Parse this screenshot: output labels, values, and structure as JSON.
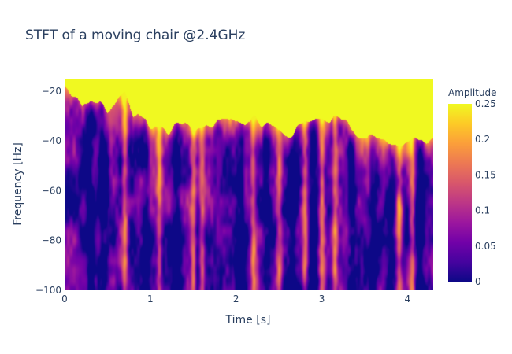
{
  "chart_data": {
    "type": "heatmap",
    "title": "STFT of a moving chair @2.4GHz",
    "xlabel": "Time [s]",
    "ylabel": "Frequency [Hz]",
    "xlim": [
      0,
      4.3
    ],
    "ylim": [
      -100,
      -15
    ],
    "x_ticks": [
      0,
      1,
      2,
      3,
      4
    ],
    "x_tick_labels": [
      "0",
      "1",
      "2",
      "3",
      "4"
    ],
    "y_ticks": [
      -20,
      -40,
      -60,
      -80,
      -100
    ],
    "y_tick_labels": [
      "−20",
      "−40",
      "−60",
      "−80",
      "−100"
    ],
    "colorbar": {
      "title": "Amplitude",
      "range": [
        0,
        0.25
      ],
      "ticks": [
        0,
        0.05,
        0.1,
        0.15,
        0.2,
        0.25
      ],
      "tick_labels": [
        "0",
        "0.05",
        "0.1",
        "0.15",
        "0.2",
        "0.25"
      ],
      "colorscale": [
        "#0d0887",
        "#46039f",
        "#7201a8",
        "#9c179e",
        "#bd3786",
        "#d8576b",
        "#ed7953",
        "#fb9f3a",
        "#fdca26",
        "#f0f921"
      ]
    },
    "time_samples_s": [
      0,
      0.1,
      0.2,
      0.3,
      0.4,
      0.5,
      0.6,
      0.7,
      0.8,
      0.9,
      1.0,
      1.1,
      1.2,
      1.3,
      1.4,
      1.5,
      1.6,
      1.7,
      1.8,
      1.9,
      2.0,
      2.1,
      2.2,
      2.3,
      2.4,
      2.5,
      2.6,
      2.7,
      2.8,
      2.9,
      3.0,
      3.1,
      3.2,
      3.3,
      3.4,
      3.5,
      3.6,
      3.7,
      3.8,
      3.9,
      4.0,
      4.1,
      4.2,
      4.3
    ],
    "saturation_boundary_hz": [
      -18,
      -22,
      -26,
      -22,
      -24,
      -28,
      -24,
      -20,
      -30,
      -32,
      -33,
      -35,
      -36,
      -33,
      -34,
      -37,
      -36,
      -34,
      -33,
      -32,
      -31,
      -33,
      -31,
      -34,
      -34,
      -35,
      -37,
      -36,
      -32,
      -31,
      -30,
      -32,
      -31,
      -34,
      -37,
      -38,
      -39,
      -40,
      -41,
      -42,
      -41,
      -40,
      -39,
      -40
    ],
    "strong_columns_s": [
      0.7,
      1.1,
      1.5,
      1.6,
      2.2,
      2.5,
      2.8,
      3.0,
      3.15,
      3.9,
      4.05
    ],
    "weak_columns_s": [
      0.3,
      0.45,
      0.95,
      1.3,
      2.05,
      2.35,
      2.65,
      2.9,
      3.35,
      3.6,
      3.8,
      4.15
    ]
  }
}
